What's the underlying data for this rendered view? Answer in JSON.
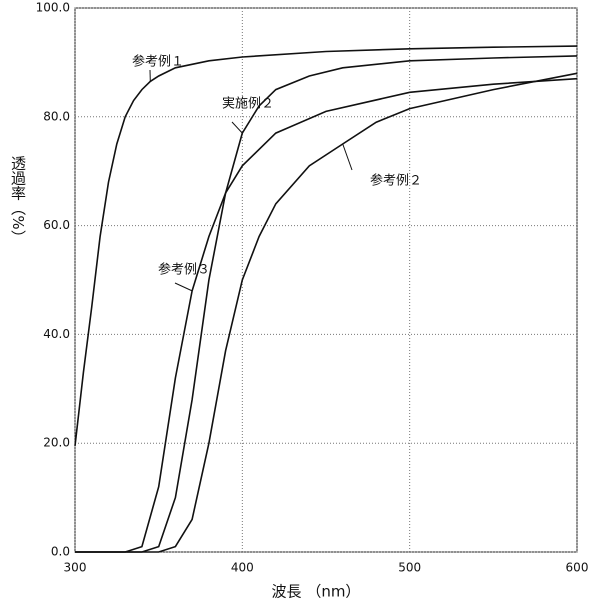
{
  "chart_data": {
    "type": "line",
    "xlabel": "波長 （nm）",
    "ylabel": "透過率（%）",
    "xlim": [
      300,
      600
    ],
    "xticks": [
      300,
      400,
      500,
      600
    ],
    "ylim": [
      0,
      100
    ],
    "yticks": [
      {
        "value": 0,
        "label": "0.0"
      },
      {
        "value": 20,
        "label": "20.0"
      },
      {
        "value": 40,
        "label": "40.0"
      },
      {
        "value": 60,
        "label": "60.0"
      },
      {
        "value": 80,
        "label": "80.0"
      },
      {
        "value": 100,
        "label": "100.0"
      }
    ],
    "grid": true,
    "series": [
      {
        "name": "参考例１",
        "color": "#111111",
        "x": [
          300,
          305,
          310,
          315,
          320,
          325,
          330,
          335,
          340,
          345,
          350,
          360,
          380,
          400,
          450,
          500,
          550,
          600
        ],
        "values": [
          19.5,
          33,
          45,
          58,
          68,
          75,
          80,
          83,
          85,
          86.5,
          87.5,
          89,
          90.3,
          91,
          92,
          92.5,
          92.8,
          93
        ]
      },
      {
        "name": "実施例２",
        "color": "#111111",
        "x": [
          300,
          340,
          350,
          360,
          370,
          380,
          390,
          400,
          410,
          420,
          440,
          460,
          500,
          550,
          600
        ],
        "values": [
          0,
          0,
          1,
          10,
          28,
          50,
          66,
          77,
          82,
          85,
          87.5,
          89,
          90.3,
          90.8,
          91.2
        ]
      },
      {
        "name": "参考例２",
        "color": "#111111",
        "x": [
          300,
          350,
          360,
          370,
          380,
          390,
          400,
          410,
          420,
          440,
          460,
          480,
          500,
          550,
          600
        ],
        "values": [
          0,
          0,
          1,
          6,
          20,
          37,
          50,
          58,
          64,
          71,
          75,
          79,
          81.5,
          85,
          88
        ]
      },
      {
        "name": "参考例３",
        "color": "#111111",
        "x": [
          300,
          330,
          340,
          350,
          360,
          370,
          380,
          390,
          400,
          420,
          450,
          500,
          550,
          600
        ],
        "values": [
          0,
          0,
          1,
          12,
          32,
          48,
          58,
          66,
          71,
          77,
          81,
          84.5,
          86,
          87
        ]
      }
    ]
  }
}
